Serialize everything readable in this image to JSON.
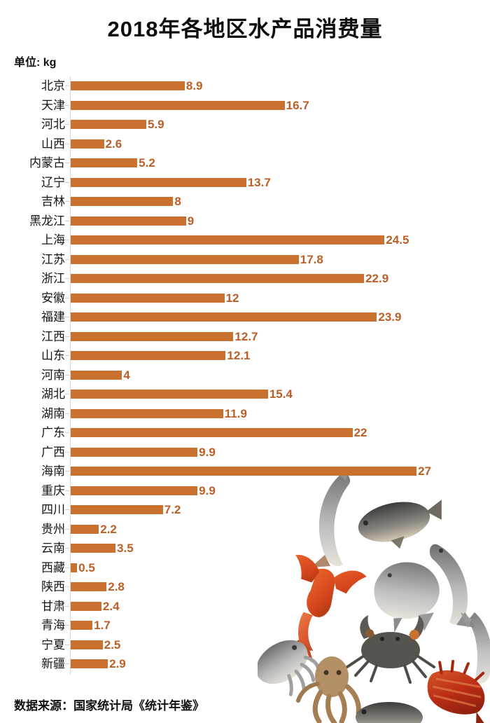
{
  "header": {
    "title": "2018年各地区水产品消费量",
    "unit_label": "单位: kg"
  },
  "footer": {
    "source": "数据来源：国家统计局《统计年鉴》"
  },
  "chart_data": {
    "type": "bar",
    "orientation": "horizontal",
    "title": "2018年各地区水产品消费量",
    "unit": "kg",
    "categories": [
      "北京",
      "天津",
      "河北",
      "山西",
      "内蒙古",
      "辽宁",
      "吉林",
      "黑龙江",
      "上海",
      "江苏",
      "浙江",
      "安徽",
      "福建",
      "江西",
      "山东",
      "河南",
      "湖北",
      "湖南",
      "广东",
      "广西",
      "海南",
      "重庆",
      "四川",
      "贵州",
      "云南",
      "西藏",
      "陕西",
      "甘肃",
      "青海",
      "宁夏",
      "新疆"
    ],
    "values": [
      8.9,
      16.7,
      5.9,
      2.6,
      5.2,
      13.7,
      8,
      9,
      24.5,
      17.8,
      22.9,
      12,
      23.9,
      12.7,
      12.1,
      4,
      15.4,
      11.9,
      22,
      9.9,
      27,
      9.9,
      7.2,
      2.2,
      3.5,
      0.5,
      2.8,
      2.4,
      1.7,
      2.5,
      2.9
    ],
    "xlim": [
      0,
      30
    ],
    "grid": false,
    "legend": "none",
    "bar_color": "#c9722f",
    "value_label_color": "#bc5e26",
    "axis_color": "#d7d7d7",
    "value_labels_shown": true
  },
  "illustration": {
    "description": "watercolor seafood collage",
    "items": [
      "fish",
      "bream",
      "pomfret",
      "crayfish",
      "crab",
      "cuttlefish",
      "octopus",
      "shrimp"
    ]
  }
}
